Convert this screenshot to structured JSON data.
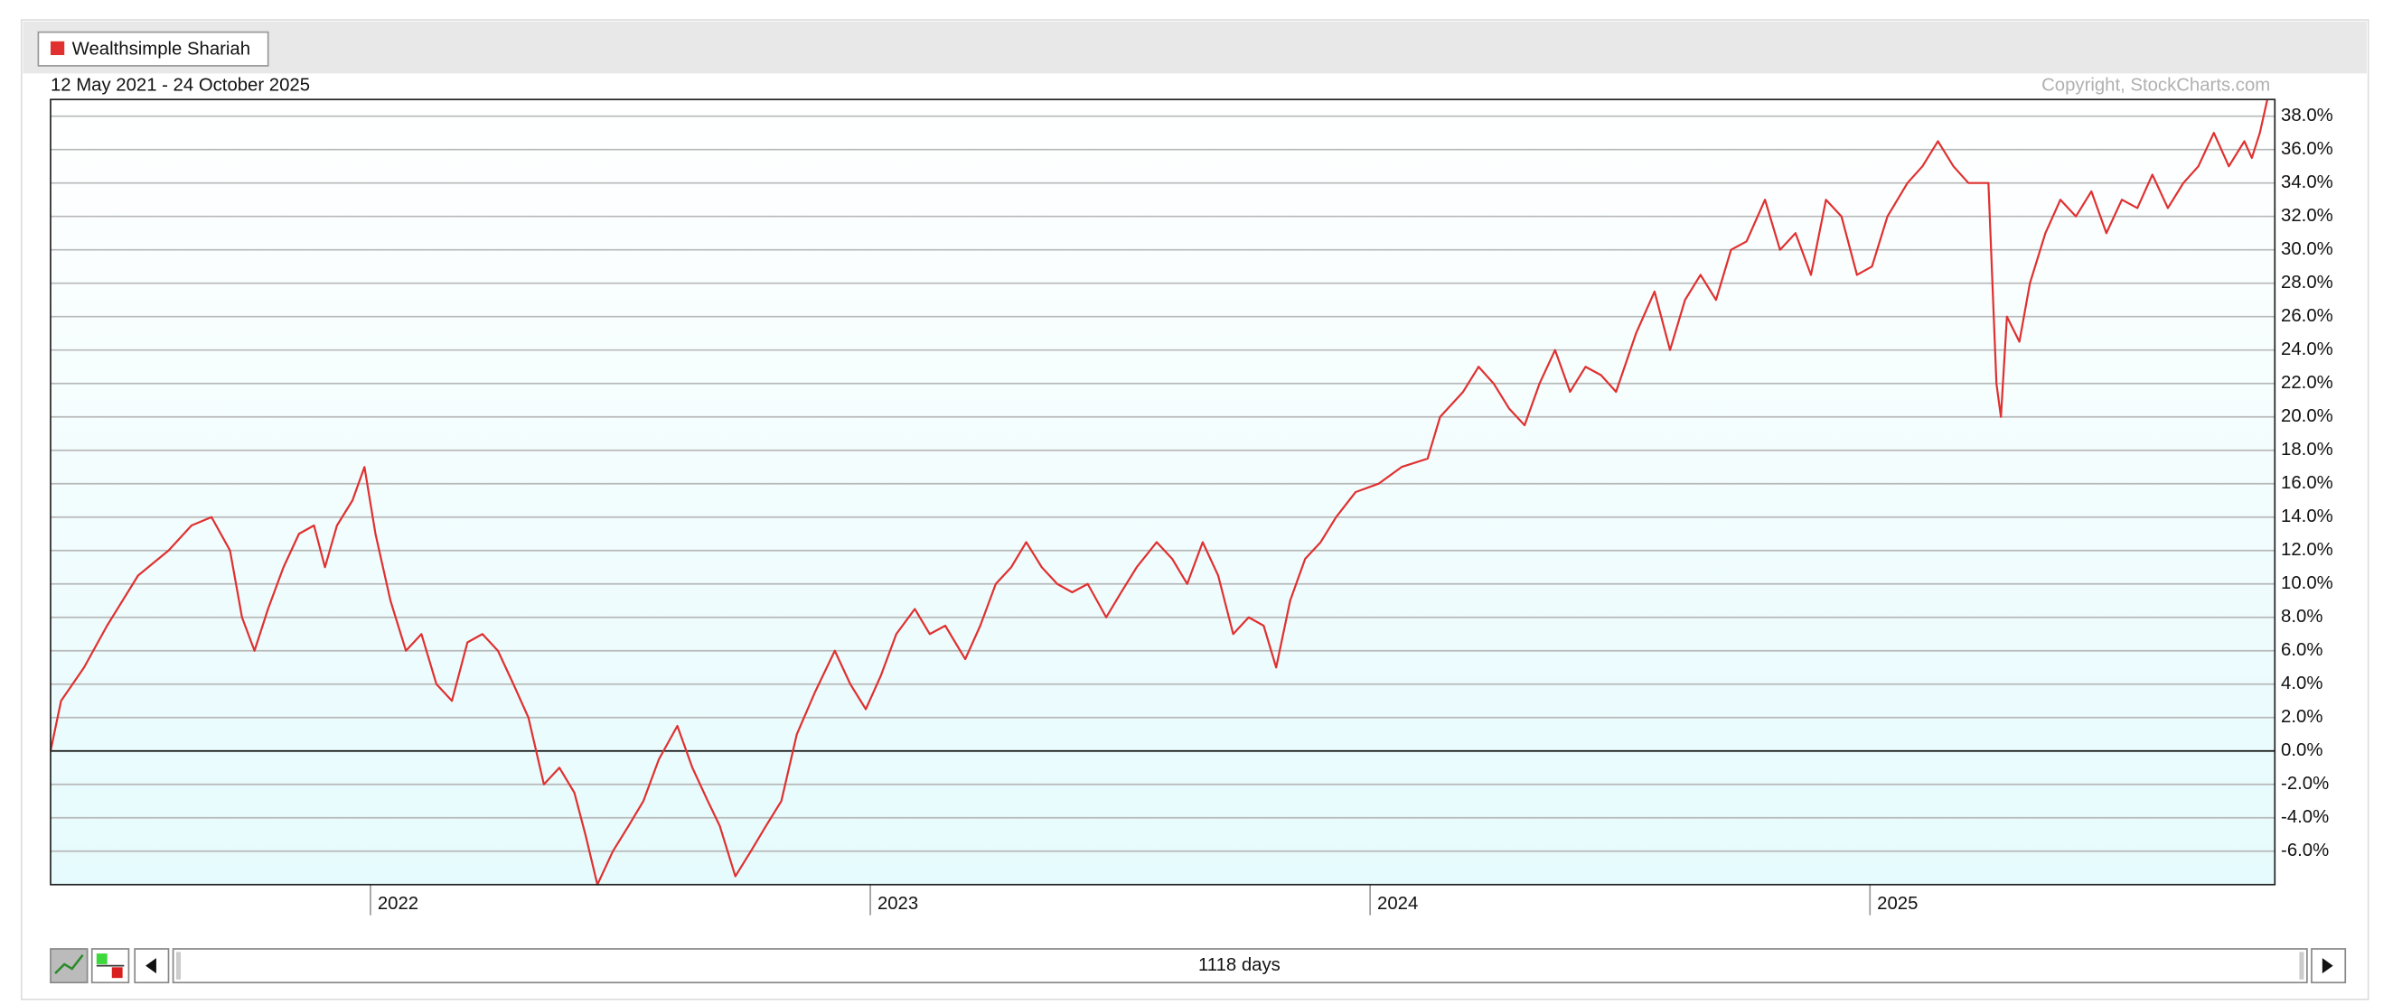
{
  "chart_data": {
    "type": "line",
    "subtitle": "12 May 2021 - 24 October 2025",
    "annotation": "Copyright, StockCharts.com",
    "x": [
      2021.36,
      2021.381,
      2021.427,
      2021.473,
      2021.535,
      2021.596,
      2021.642,
      2021.682,
      2021.719,
      2021.743,
      2021.768,
      2021.795,
      2021.826,
      2021.857,
      2021.887,
      2021.909,
      2021.933,
      2021.964,
      2021.988,
      2022.01,
      2022.04,
      2022.071,
      2022.102,
      2022.132,
      2022.163,
      2022.194,
      2022.224,
      2022.255,
      2022.286,
      2022.316,
      2022.347,
      2022.378,
      2022.408,
      2022.43,
      2022.454,
      2022.485,
      2022.516,
      2022.546,
      2022.577,
      2022.614,
      2022.644,
      2022.675,
      2022.699,
      2022.73,
      2022.761,
      2022.791,
      2022.822,
      2022.853,
      2022.889,
      2022.929,
      2022.96,
      2022.991,
      2023.021,
      2023.052,
      2023.089,
      2023.119,
      2023.15,
      2023.19,
      2023.22,
      2023.251,
      2023.282,
      2023.312,
      2023.343,
      2023.374,
      2023.404,
      2023.435,
      2023.472,
      2023.502,
      2023.533,
      2023.573,
      2023.604,
      2023.634,
      2023.665,
      2023.696,
      2023.726,
      2023.757,
      2023.787,
      2023.812,
      2023.84,
      2023.87,
      2023.901,
      2023.932,
      2023.971,
      2024.017,
      2024.063,
      2024.115,
      2024.14,
      2024.186,
      2024.217,
      2024.247,
      2024.278,
      2024.309,
      2024.339,
      2024.37,
      2024.4,
      2024.431,
      2024.462,
      2024.492,
      2024.532,
      2024.569,
      2024.6,
      2024.63,
      2024.661,
      2024.692,
      2024.722,
      2024.753,
      2024.79,
      2024.82,
      2024.851,
      2024.882,
      2024.912,
      2024.943,
      2024.974,
      2025.004,
      2025.035,
      2025.075,
      2025.105,
      2025.136,
      2025.167,
      2025.197,
      2025.237,
      2025.253,
      2025.262,
      2025.274,
      2025.299,
      2025.32,
      2025.351,
      2025.381,
      2025.412,
      2025.443,
      2025.473,
      2025.504,
      2025.535,
      2025.565,
      2025.596,
      2025.627,
      2025.657,
      2025.688,
      2025.718,
      2025.749,
      2025.764,
      2025.78,
      2025.795
    ],
    "series": [
      {
        "name": "Wealthsimple Shariah",
        "color": "#e03030",
        "values": [
          0,
          3,
          5,
          7.5,
          10.5,
          12,
          13.5,
          14,
          12,
          8,
          6,
          8.5,
          11,
          13,
          13.5,
          11,
          13.5,
          15,
          17,
          13,
          9,
          6,
          7,
          4,
          3,
          6.5,
          7,
          6,
          4,
          2,
          -2,
          -1,
          -2.5,
          -5,
          -8,
          -6,
          -4.5,
          -3,
          -0.5,
          1.5,
          -1,
          -3,
          -4.5,
          -7.5,
          -6,
          -4.5,
          -3,
          1,
          3.5,
          6,
          4,
          2.5,
          4.5,
          7,
          8.5,
          7,
          7.5,
          5.5,
          7.5,
          10,
          11,
          12.5,
          11,
          10,
          9.5,
          10,
          8,
          9.5,
          11,
          12.5,
          11.5,
          10,
          12.5,
          10.5,
          7,
          8,
          7.5,
          5,
          9,
          11.5,
          12.5,
          14,
          15.5,
          16,
          17,
          17.5,
          20,
          21.5,
          23,
          22,
          20.5,
          19.5,
          22,
          24,
          21.5,
          23,
          22.5,
          21.5,
          25,
          27.5,
          24,
          27,
          28.5,
          27,
          30,
          30.5,
          33,
          30,
          31,
          28.5,
          33,
          32,
          28.5,
          29,
          32,
          34,
          35,
          36.5,
          35,
          34,
          34,
          22,
          20,
          26,
          24.5,
          28,
          31,
          33,
          32,
          33.5,
          31,
          33,
          32.5,
          34.5,
          32.5,
          34,
          35,
          37,
          35,
          36.5,
          35.5,
          37,
          39
        ]
      }
    ],
    "xlim": [
      2021.36,
      2025.81
    ],
    "xticks": [
      2022,
      2023,
      2024,
      2025
    ],
    "ylim": [
      -8,
      39
    ],
    "yticks": [
      {
        "value": -6,
        "label": "-6.0%"
      },
      {
        "value": -4,
        "label": "-4.0%"
      },
      {
        "value": -2,
        "label": "-2.0%"
      },
      {
        "value": 0,
        "label": "0.0%"
      },
      {
        "value": 2,
        "label": "2.0%"
      },
      {
        "value": 4,
        "label": "4.0%"
      },
      {
        "value": 6,
        "label": "6.0%"
      },
      {
        "value": 8,
        "label": "8.0%"
      },
      {
        "value": 10,
        "label": "10.0%"
      },
      {
        "value": 12,
        "label": "12.0%"
      },
      {
        "value": 14,
        "label": "14.0%"
      },
      {
        "value": 16,
        "label": "16.0%"
      },
      {
        "value": 18,
        "label": "18.0%"
      },
      {
        "value": 20,
        "label": "20.0%"
      },
      {
        "value": 22,
        "label": "22.0%"
      },
      {
        "value": 24,
        "label": "24.0%"
      },
      {
        "value": 26,
        "label": "26.0%"
      },
      {
        "value": 28,
        "label": "28.0%"
      },
      {
        "value": 30,
        "label": "30.0%"
      },
      {
        "value": 32,
        "label": "32.0%"
      },
      {
        "value": 34,
        "label": "34.0%"
      },
      {
        "value": 36,
        "label": "36.0%"
      },
      {
        "value": 38,
        "label": "38.0%"
      }
    ],
    "grid": true
  },
  "scrollbar": {
    "label": "1118 days"
  }
}
